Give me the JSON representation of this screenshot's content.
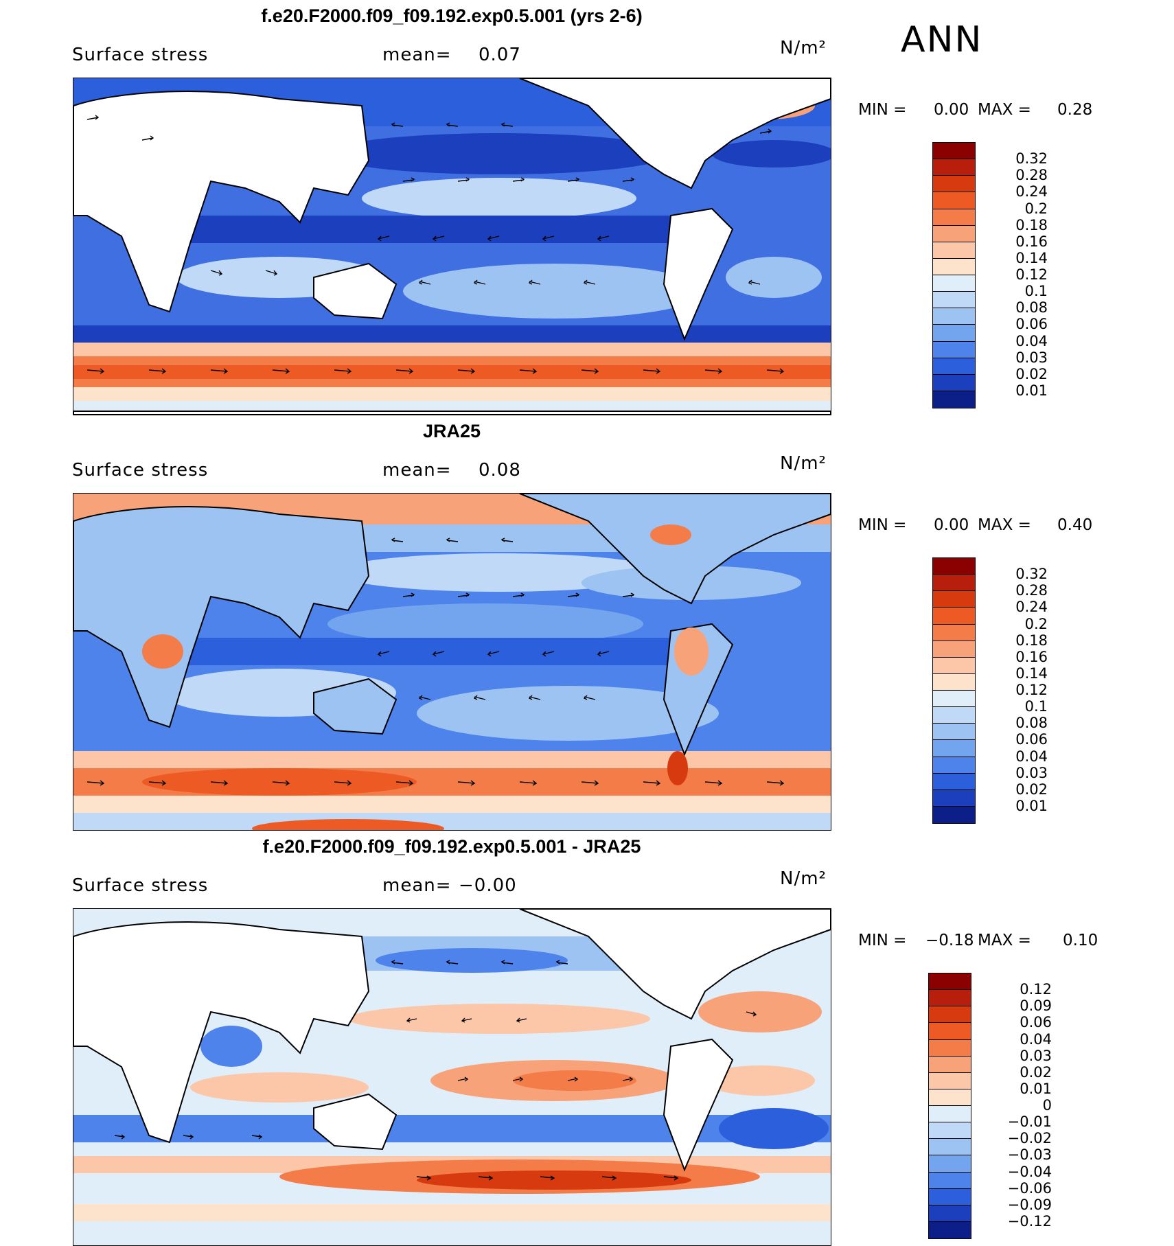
{
  "season": "ANN",
  "panels": [
    {
      "title": "f.e20.F2000.f09_f09.192.exp0.5.001 (yrs 2-6)",
      "variable": "Surface stress",
      "mean_label": "mean=",
      "mean_value": "0.07",
      "units": "N/m²",
      "min_label": "MIN =",
      "min_value": "0.00",
      "max_label": "MAX =",
      "max_value": "0.28",
      "colorbar_labels": [
        "0.32",
        "0.28",
        "0.24",
        "0.2",
        "0.18",
        "0.16",
        "0.14",
        "0.12",
        "0.1",
        "0.08",
        "0.06",
        "0.04",
        "0.03",
        "0.02",
        "0.01"
      ],
      "colors": [
        "#8b0000",
        "#b71f0c",
        "#d73a0f",
        "#ee5a23",
        "#f47c48",
        "#f8a27a",
        "#fbc7a8",
        "#fde3cc",
        "#e0eefa",
        "#bfd9f6",
        "#9dc3f2",
        "#73a4ee",
        "#4d83ea",
        "#2b5fdc",
        "#1b3fbd",
        "#0c1f88"
      ]
    },
    {
      "title": "JRA25",
      "variable": "Surface stress",
      "mean_label": "mean=",
      "mean_value": "0.08",
      "units": "N/m²",
      "min_label": "MIN =",
      "min_value": "0.00",
      "max_label": "MAX =",
      "max_value": "0.40",
      "colorbar_labels": [
        "0.32",
        "0.28",
        "0.24",
        "0.2",
        "0.18",
        "0.16",
        "0.14",
        "0.12",
        "0.1",
        "0.08",
        "0.06",
        "0.04",
        "0.03",
        "0.02",
        "0.01"
      ],
      "colors": [
        "#8b0000",
        "#b71f0c",
        "#d73a0f",
        "#ee5a23",
        "#f47c48",
        "#f8a27a",
        "#fbc7a8",
        "#fde3cc",
        "#e0eefa",
        "#bfd9f6",
        "#9dc3f2",
        "#73a4ee",
        "#4d83ea",
        "#2b5fdc",
        "#1b3fbd",
        "#0c1f88"
      ]
    },
    {
      "title": "f.e20.F2000.f09_f09.192.exp0.5.001 - JRA25",
      "variable": "Surface stress",
      "mean_label": "mean=",
      "mean_value": "−0.00",
      "units": "N/m²",
      "min_label": "MIN =",
      "min_value": "−0.18",
      "max_label": "MAX =",
      "max_value": "0.10",
      "colorbar_labels": [
        "0.12",
        "0.09",
        "0.06",
        "0.04",
        "0.03",
        "0.02",
        "0.01",
        "0",
        "−0.01",
        "−0.02",
        "−0.03",
        "−0.04",
        "−0.06",
        "−0.09",
        "−0.12"
      ],
      "colors": [
        "#8b0000",
        "#b71f0c",
        "#d73a0f",
        "#ee5a23",
        "#f47c48",
        "#f8a27a",
        "#fbc7a8",
        "#fde3cc",
        "#e0eefa",
        "#bfd9f6",
        "#9dc3f2",
        "#73a4ee",
        "#4d83ea",
        "#2b5fdc",
        "#1b3fbd",
        "#0c1f88"
      ]
    }
  ]
}
